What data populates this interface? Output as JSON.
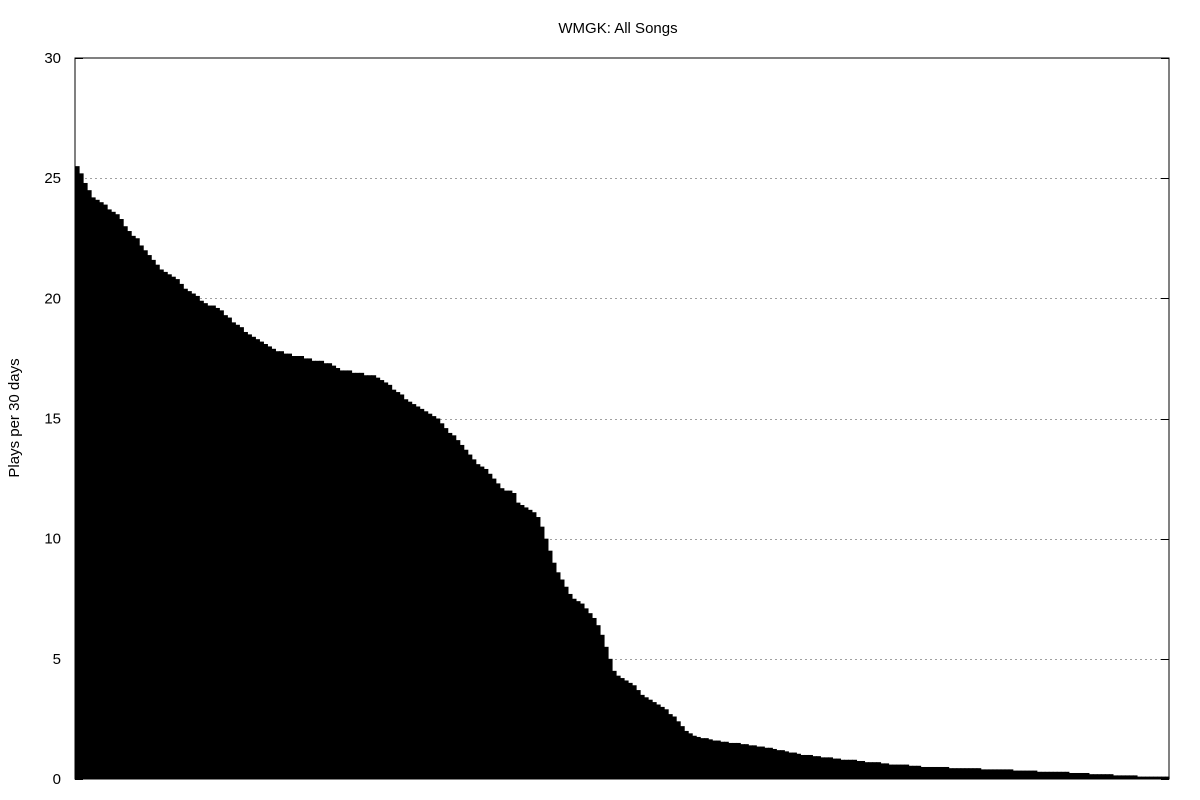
{
  "chart_data": {
    "type": "bar",
    "title": "WMGK: All Songs",
    "xlabel": "",
    "ylabel": "Plays per 30 days",
    "ylim": [
      0,
      30
    ],
    "yticks": [
      0,
      5,
      10,
      15,
      20,
      25,
      30
    ],
    "grid": "horizontal dashed lines at y ticks",
    "legend": "none",
    "bar_color": "#000000",
    "values": [
      25.5,
      25.2,
      24.8,
      24.5,
      24.2,
      24.1,
      24.0,
      23.9,
      23.7,
      23.6,
      23.5,
      23.3,
      23.0,
      22.8,
      22.6,
      22.5,
      22.2,
      22.0,
      21.8,
      21.6,
      21.4,
      21.2,
      21.1,
      21.0,
      20.9,
      20.8,
      20.6,
      20.4,
      20.3,
      20.2,
      20.1,
      19.9,
      19.8,
      19.7,
      19.7,
      19.6,
      19.5,
      19.3,
      19.2,
      19.0,
      18.9,
      18.8,
      18.6,
      18.5,
      18.4,
      18.3,
      18.2,
      18.1,
      18.0,
      17.9,
      17.8,
      17.8,
      17.7,
      17.7,
      17.6,
      17.6,
      17.6,
      17.5,
      17.5,
      17.4,
      17.4,
      17.4,
      17.3,
      17.3,
      17.2,
      17.1,
      17.0,
      17.0,
      17.0,
      16.9,
      16.9,
      16.9,
      16.8,
      16.8,
      16.8,
      16.7,
      16.6,
      16.5,
      16.4,
      16.2,
      16.1,
      16.0,
      15.8,
      15.7,
      15.6,
      15.5,
      15.4,
      15.3,
      15.2,
      15.1,
      15.0,
      14.8,
      14.6,
      14.4,
      14.3,
      14.1,
      13.9,
      13.7,
      13.5,
      13.3,
      13.1,
      13.0,
      12.9,
      12.7,
      12.5,
      12.3,
      12.1,
      12.0,
      12.0,
      11.9,
      11.5,
      11.4,
      11.3,
      11.2,
      11.1,
      10.9,
      10.5,
      10.0,
      9.5,
      9.0,
      8.6,
      8.3,
      8.0,
      7.7,
      7.5,
      7.4,
      7.3,
      7.1,
      6.9,
      6.7,
      6.4,
      6.0,
      5.5,
      5.0,
      4.5,
      4.3,
      4.2,
      4.1,
      4.0,
      3.9,
      3.7,
      3.5,
      3.4,
      3.3,
      3.2,
      3.1,
      3.0,
      2.9,
      2.7,
      2.6,
      2.4,
      2.2,
      2.0,
      1.9,
      1.8,
      1.75,
      1.7,
      1.7,
      1.65,
      1.6,
      1.6,
      1.55,
      1.55,
      1.5,
      1.5,
      1.5,
      1.45,
      1.45,
      1.4,
      1.4,
      1.35,
      1.35,
      1.3,
      1.3,
      1.25,
      1.2,
      1.2,
      1.15,
      1.1,
      1.1,
      1.05,
      1.0,
      1.0,
      1.0,
      0.95,
      0.95,
      0.9,
      0.9,
      0.9,
      0.85,
      0.85,
      0.8,
      0.8,
      0.8,
      0.8,
      0.75,
      0.75,
      0.7,
      0.7,
      0.7,
      0.7,
      0.65,
      0.65,
      0.6,
      0.6,
      0.6,
      0.6,
      0.6,
      0.55,
      0.55,
      0.55,
      0.5,
      0.5,
      0.5,
      0.5,
      0.5,
      0.5,
      0.5,
      0.45,
      0.45,
      0.45,
      0.45,
      0.45,
      0.45,
      0.45,
      0.45,
      0.4,
      0.4,
      0.4,
      0.4,
      0.4,
      0.4,
      0.4,
      0.4,
      0.35,
      0.35,
      0.35,
      0.35,
      0.35,
      0.35,
      0.3,
      0.3,
      0.3,
      0.3,
      0.3,
      0.3,
      0.3,
      0.3,
      0.25,
      0.25,
      0.25,
      0.25,
      0.25,
      0.2,
      0.2,
      0.2,
      0.2,
      0.2,
      0.2,
      0.15,
      0.15,
      0.15,
      0.15,
      0.15,
      0.15,
      0.1,
      0.1,
      0.1,
      0.1,
      0.1,
      0.1,
      0.1,
      0.1
    ]
  }
}
